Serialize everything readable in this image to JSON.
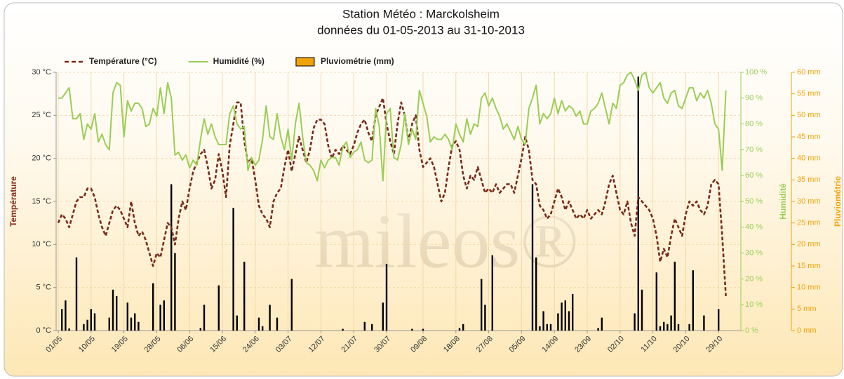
{
  "chart_data": {
    "type": "line",
    "title": "Station Météo : Marckolsheim",
    "subtitle": "données du 01-05-2013 au 31-10-2013",
    "watermark": "mileos®",
    "ylabel": "Température",
    "y2label": "Humidité",
    "y3label": "Pluviométrie",
    "legend": "top-left",
    "grid": true,
    "categories": [
      "01/05",
      null,
      null,
      null,
      null,
      null,
      null,
      null,
      null,
      "10/05",
      null,
      null,
      null,
      null,
      null,
      null,
      null,
      null,
      "19/05",
      null,
      null,
      null,
      null,
      null,
      null,
      null,
      null,
      "28/05",
      null,
      null,
      null,
      null,
      null,
      null,
      null,
      null,
      "06/06",
      null,
      null,
      null,
      null,
      null,
      null,
      null,
      null,
      "15/06",
      null,
      null,
      null,
      null,
      null,
      null,
      null,
      null,
      "24/06",
      null,
      null,
      null,
      null,
      null,
      null,
      null,
      null,
      "03/07",
      null,
      null,
      null,
      null,
      null,
      null,
      null,
      null,
      "12/07",
      null,
      null,
      null,
      null,
      null,
      null,
      null,
      null,
      "21/07",
      null,
      null,
      null,
      null,
      null,
      null,
      null,
      null,
      "30/07",
      null,
      null,
      null,
      null,
      null,
      null,
      null,
      null,
      null,
      "09/08",
      null,
      null,
      null,
      null,
      null,
      null,
      null,
      null,
      "18/08",
      null,
      null,
      null,
      null,
      null,
      null,
      null,
      null,
      "27/08",
      null,
      null,
      null,
      null,
      null,
      null,
      null,
      null,
      "05/09",
      null,
      null,
      null,
      null,
      null,
      null,
      null,
      null,
      "14/09",
      null,
      null,
      null,
      null,
      null,
      null,
      null,
      null,
      "23/09",
      null,
      null,
      null,
      null,
      null,
      null,
      null,
      null,
      "02/10",
      null,
      null,
      null,
      null,
      null,
      null,
      null,
      null,
      "11/10",
      null,
      null,
      null,
      null,
      null,
      null,
      null,
      null,
      "20/10",
      null,
      null,
      null,
      null,
      null,
      null,
      null,
      null,
      "29/10",
      null,
      null
    ],
    "series": [
      {
        "name": "Température (°C)",
        "type": "line",
        "dashed": true,
        "color": "#7a2a1a",
        "values": [
          12.5,
          13.5,
          13,
          12,
          13.5,
          15,
          15.5,
          15.5,
          16.5,
          16.5,
          15.5,
          13.5,
          12,
          11,
          12.5,
          14,
          14.5,
          14,
          13,
          12,
          15,
          12.5,
          11,
          11.5,
          10.5,
          9,
          7.5,
          9,
          8.5,
          10.5,
          12.5,
          12,
          10,
          13,
          15,
          14,
          16.5,
          18.5,
          19.5,
          20.5,
          21,
          19,
          16.5,
          17.5,
          20.5,
          18.5,
          15.5,
          21.5,
          24,
          26.5,
          26.5,
          22,
          19.5,
          20,
          17.5,
          14.5,
          13.5,
          13,
          12,
          15,
          16,
          16.5,
          19,
          21,
          18.5,
          20.5,
          22.5,
          21,
          19.5,
          21,
          23.5,
          24.5,
          24.5,
          24,
          21.5,
          20,
          21,
          20.5,
          21.5,
          21,
          20.5,
          21.5,
          23,
          24,
          24.5,
          23,
          22,
          25,
          26,
          27,
          24,
          22,
          20.5,
          24,
          26.5,
          25,
          22,
          24,
          25,
          21,
          19,
          19.5,
          20,
          19,
          17,
          15,
          16,
          19,
          21.5,
          22,
          21,
          18,
          16.5,
          18,
          17.5,
          19,
          17.5,
          16,
          16.5,
          16,
          17,
          16,
          16.5,
          17,
          17,
          16,
          18,
          20,
          22.5,
          21,
          17.5,
          17,
          14.5,
          14,
          13,
          13.5,
          15,
          16.5,
          15.5,
          14,
          15,
          14,
          13,
          13.5,
          13,
          14,
          13,
          13.5,
          14,
          13.5,
          15,
          17,
          18,
          16,
          14,
          13.5,
          15,
          12.5,
          11,
          15.5,
          15,
          14.5,
          14,
          13,
          11,
          8,
          9.5,
          8.5,
          11,
          13,
          12,
          11,
          13.5,
          15,
          14.5,
          15,
          14,
          13.5,
          14.5,
          17,
          17.5,
          17,
          11,
          4
        ]
      },
      {
        "name": "Humidité (%)",
        "type": "line",
        "axis": "y2",
        "color": "#9acd55",
        "values": [
          90,
          90,
          92,
          94,
          82,
          82,
          84,
          74,
          80,
          78,
          84,
          73,
          76,
          72,
          70,
          92,
          96,
          95,
          75,
          89,
          85,
          88,
          88,
          86,
          79,
          80,
          86,
          83,
          94,
          84,
          96,
          90,
          68,
          69,
          66,
          68,
          63,
          66,
          64,
          74,
          82,
          76,
          80,
          75,
          72,
          72,
          72,
          84,
          87,
          80,
          78,
          79,
          62,
          67,
          64,
          66,
          74,
          87,
          75,
          74,
          84,
          75,
          70,
          78,
          66,
          80,
          88,
          75,
          65,
          64,
          62,
          58,
          66,
          63,
          66,
          67,
          67,
          64,
          71,
          73,
          67,
          69,
          70,
          73,
          66,
          65,
          66,
          86,
          79,
          58,
          84,
          86,
          67,
          66,
          72,
          84,
          72,
          78,
          74,
          93,
          88,
          83,
          73,
          75,
          74,
          74,
          76,
          74,
          70,
          80,
          76,
          73,
          82,
          76,
          80,
          79,
          90,
          92,
          87,
          90,
          86,
          83,
          78,
          80,
          77,
          74,
          79,
          74,
          72,
          86,
          90,
          95,
          80,
          84,
          82,
          84,
          90,
          84,
          89,
          85,
          87,
          86,
          83,
          85,
          80,
          80,
          85,
          86,
          88,
          92,
          86,
          80,
          88,
          86,
          95,
          96,
          99,
          100,
          97,
          93,
          99,
          100,
          94,
          92,
          94,
          96,
          90,
          88,
          92,
          93,
          87,
          86,
          90,
          94,
          94,
          89,
          92,
          90,
          93,
          88,
          80,
          78,
          62,
          93
        ]
      },
      {
        "name": "Pluviométrie (mm)",
        "type": "bar",
        "axis": "y3",
        "color": "#f0a30a",
        "edge_color": "#000000",
        "values": [
          0,
          5,
          7,
          0.5,
          0,
          17,
          0,
          1.5,
          2.5,
          5,
          4,
          0,
          0,
          0,
          3,
          9.5,
          8,
          0,
          0,
          6.5,
          3,
          4,
          2,
          0,
          0,
          0,
          11,
          0,
          6,
          7,
          0,
          34,
          18,
          0,
          0,
          0,
          0,
          0,
          0,
          0.6,
          6,
          0,
          0,
          0,
          10.5,
          0,
          0,
          0,
          28.5,
          3.5,
          0,
          16,
          0,
          0,
          0,
          3,
          1,
          0,
          6,
          0,
          3,
          0,
          0,
          0,
          12,
          0,
          0,
          0,
          0,
          0,
          0,
          0,
          0,
          0,
          0,
          0,
          0,
          0,
          0.4,
          0,
          0,
          0,
          0,
          0,
          2,
          0,
          1.5,
          0,
          0,
          6.5,
          15.5,
          0,
          0,
          0,
          0,
          0,
          0,
          0.4,
          0,
          0,
          0.4,
          0,
          0,
          0,
          0,
          0,
          0,
          0,
          0,
          0,
          0.6,
          1.5,
          0,
          0,
          0,
          0,
          12,
          6,
          0,
          17.5,
          0,
          0,
          0,
          0,
          0,
          0,
          0,
          0,
          0,
          0,
          34,
          17,
          1,
          4.5,
          1.5,
          1.5,
          0,
          4,
          6.5,
          7,
          4.5,
          8.5,
          0,
          0,
          0,
          0,
          0,
          0,
          0.6,
          3,
          0,
          0,
          0,
          0,
          0,
          0,
          0,
          0,
          4,
          59,
          9.5,
          0,
          0,
          0,
          13.5,
          1,
          2,
          1.5,
          3.5,
          16,
          1.5,
          0,
          0,
          1.5,
          14,
          0,
          0,
          3.5,
          0,
          0,
          0,
          5,
          0,
          0
        ]
      }
    ],
    "ylim": [
      0,
      30
    ],
    "yticks": [
      {
        "value": 0,
        "label": "0 °C"
      },
      {
        "value": 5,
        "label": "5 °C"
      },
      {
        "value": 10,
        "label": "10 °C"
      },
      {
        "value": 15,
        "label": "15 °C"
      },
      {
        "value": 20,
        "label": "20 °C"
      },
      {
        "value": 25,
        "label": "25 °C"
      },
      {
        "value": 30,
        "label": "30 °C"
      }
    ],
    "y2lim": [
      0,
      100
    ],
    "y2ticks": [
      {
        "value": 0,
        "label": "0 %"
      },
      {
        "value": 10,
        "label": "10 %"
      },
      {
        "value": 20,
        "label": "20 %"
      },
      {
        "value": 30,
        "label": "30 %"
      },
      {
        "value": 40,
        "label": "40 %"
      },
      {
        "value": 50,
        "label": "50 %"
      },
      {
        "value": 60,
        "label": "60 %"
      },
      {
        "value": 70,
        "label": "70 %"
      },
      {
        "value": 80,
        "label": "80 %"
      },
      {
        "value": 90,
        "label": "90 %"
      },
      {
        "value": 100,
        "label": "100 %"
      }
    ],
    "y3lim": [
      0,
      60
    ],
    "y3ticks": [
      {
        "value": 0,
        "label": "0 mm"
      },
      {
        "value": 5,
        "label": "5 mm"
      },
      {
        "value": 10,
        "label": "10 mm"
      },
      {
        "value": 15,
        "label": "15 mm"
      },
      {
        "value": 20,
        "label": "20 mm"
      },
      {
        "value": 25,
        "label": "25 mm"
      },
      {
        "value": 30,
        "label": "30 mm"
      },
      {
        "value": 35,
        "label": "35 mm"
      },
      {
        "value": 40,
        "label": "40 mm"
      },
      {
        "value": 45,
        "label": "45 mm"
      },
      {
        "value": 50,
        "label": "50 mm"
      },
      {
        "value": 55,
        "label": "55 mm"
      },
      {
        "value": 60,
        "label": "60 mm"
      }
    ]
  }
}
